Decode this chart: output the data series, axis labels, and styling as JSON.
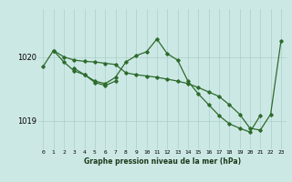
{
  "xlabel": "Graphe pression niveau de la mer (hPa)",
  "ylim": [
    1018.55,
    1020.75
  ],
  "yticks": [
    1019,
    1020
  ],
  "background_color": "#cce8e4",
  "grid_color": "#aacfcb",
  "line_color": "#2d6b2d",
  "series_a_x": [
    0,
    1,
    2,
    3,
    4,
    5,
    6,
    7,
    8,
    9,
    10,
    11,
    12,
    13,
    14,
    15,
    16,
    17,
    18,
    19,
    20,
    21,
    22,
    23
  ],
  "series_a_y": [
    1019.85,
    1020.1,
    1020.0,
    1019.95,
    1019.93,
    1019.92,
    1019.9,
    1019.88,
    1019.75,
    1019.72,
    1019.7,
    1019.68,
    1019.65,
    1019.62,
    1019.58,
    1019.52,
    1019.45,
    1019.38,
    1019.25,
    1019.1,
    1018.88,
    1018.85,
    1019.1,
    1020.25
  ],
  "series_b_x": [
    1,
    2,
    3,
    4,
    5,
    6,
    7,
    8,
    9,
    10,
    11,
    12,
    13,
    14,
    15,
    16,
    17,
    18,
    19,
    20,
    21
  ],
  "series_b_y": [
    1020.1,
    1019.92,
    1019.78,
    1019.72,
    1019.62,
    1019.58,
    1019.68,
    1019.92,
    1020.02,
    1020.08,
    1020.28,
    1020.05,
    1019.95,
    1019.62,
    1019.42,
    1019.25,
    1019.08,
    1018.95,
    1018.88,
    1018.82,
    1019.08
  ],
  "series_c_x": [
    3,
    4,
    5,
    6,
    7
  ],
  "series_c_y": [
    1019.82,
    1019.72,
    1019.6,
    1019.55,
    1019.62
  ]
}
